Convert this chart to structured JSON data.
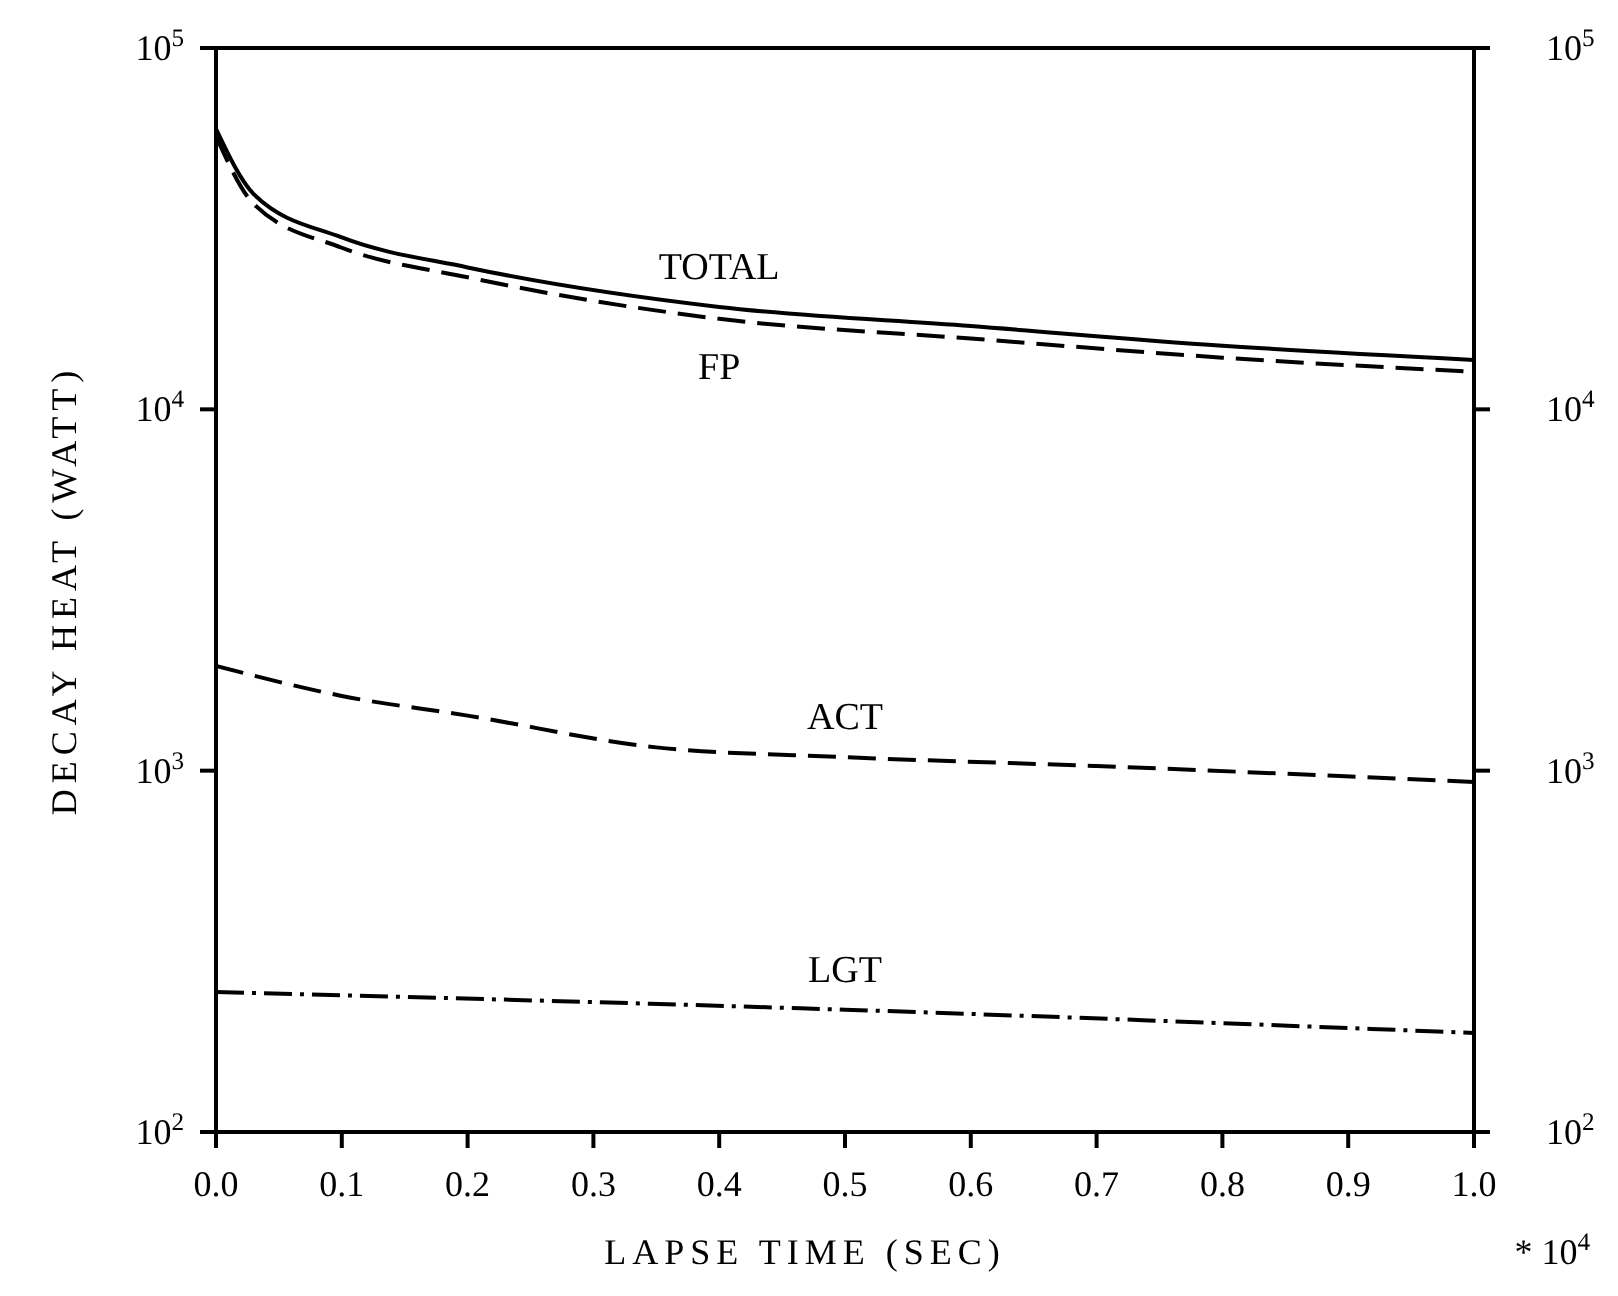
{
  "chart_data": {
    "type": "line",
    "xlabel": "LAPSE TIME (SEC)",
    "ylabel": "DECAY HEAT (WATT)",
    "log": "y",
    "grid": false,
    "legend": false,
    "marker": "none",
    "xlim": [
      0,
      1
    ],
    "xticks": [
      {
        "value": 0,
        "label": "0.0"
      },
      {
        "value": 0.1,
        "label": "0.1"
      },
      {
        "value": 0.2,
        "label": "0.2"
      },
      {
        "value": 0.3,
        "label": "0.3"
      },
      {
        "value": 0.4,
        "label": "0.4"
      },
      {
        "value": 0.5,
        "label": "0.5"
      },
      {
        "value": 0.6,
        "label": "0.6"
      },
      {
        "value": 0.7,
        "label": "0.7"
      },
      {
        "value": 0.8,
        "label": "0.8"
      },
      {
        "value": 0.9,
        "label": "0.9"
      },
      {
        "value": 1,
        "label": "1.0"
      }
    ],
    "ylim": [
      100,
      100000
    ],
    "yticks": [
      {
        "value": 100,
        "label": "10$^{2}$"
      },
      {
        "value": 1000,
        "label": "10$^{3}$"
      },
      {
        "value": 10000,
        "label": "10$^{4}$"
      },
      {
        "value": 100000,
        "label": "10$^{5}$"
      }
    ],
    "annotations": [
      "* 10$^{4}$"
    ],
    "series": [
      {
        "name": "TOTAL",
        "color": "#000000",
        "line_style": "solid",
        "x": [
          0,
          0.03,
          0.1,
          0.2,
          0.4,
          0.6,
          0.8,
          1.0
        ],
        "values": [
          59700,
          39400,
          29900,
          24700,
          19200,
          17000,
          15000,
          13700
        ]
      },
      {
        "name": "FP",
        "color": "#000000",
        "line_style": "dashed",
        "x": [
          0,
          0.03,
          0.1,
          0.2,
          0.4,
          0.6,
          0.8,
          1.0
        ],
        "values": [
          57000,
          37000,
          28000,
          23200,
          17800,
          15700,
          13900,
          12700
        ]
      },
      {
        "name": "ACT",
        "color": "#000000",
        "line_style": "dashed",
        "x": [
          0,
          0.1,
          0.2,
          0.35,
          0.5,
          0.7,
          1.0
        ],
        "values": [
          1950,
          1610,
          1420,
          1160,
          1090,
          1030,
          930
        ]
      },
      {
        "name": "LGT",
        "color": "#000000",
        "line_style": "dashdot",
        "x": [
          0,
          0.5,
          1.0
        ],
        "values": [
          244,
          218,
          188
        ]
      }
    ]
  }
}
